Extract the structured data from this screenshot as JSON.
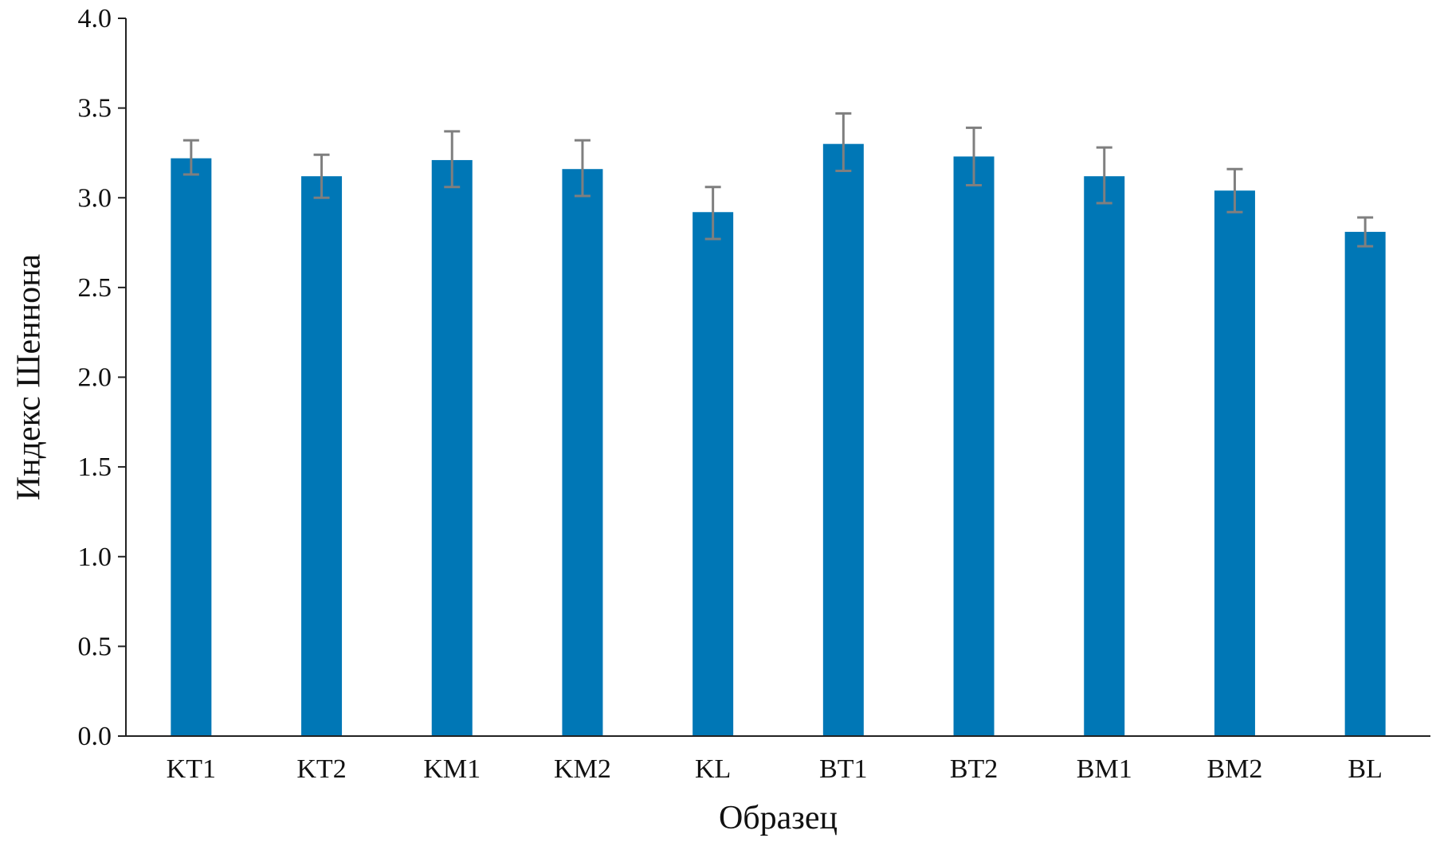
{
  "chart_data": {
    "type": "bar",
    "title": "",
    "xlabel": "Образец",
    "ylabel": "Индекс Шеннона",
    "categories": [
      "KT1",
      "KT2",
      "KM1",
      "KM2",
      "KL",
      "BT1",
      "BT2",
      "BM1",
      "BM2",
      "BL"
    ],
    "series": [
      {
        "values": [
          3.22,
          3.12,
          3.21,
          3.16,
          2.92,
          3.3,
          3.23,
          3.12,
          3.04,
          2.81
        ],
        "error_low": [
          3.13,
          3.0,
          3.06,
          3.01,
          2.77,
          3.15,
          3.07,
          2.97,
          2.92,
          2.73
        ],
        "error_high": [
          3.32,
          3.24,
          3.37,
          3.32,
          3.06,
          3.47,
          3.39,
          3.28,
          3.16,
          2.89
        ]
      }
    ],
    "ylim": [
      0,
      4.0
    ],
    "yticks": [
      "0.0",
      "0.5",
      "1.0",
      "1.5",
      "2.0",
      "2.5",
      "3.0",
      "3.5",
      "4.0"
    ],
    "grid": false,
    "legend": "none",
    "colors": {
      "bar": "#0077B6",
      "error_bar": "#7F7F7F",
      "axis": "#222222"
    }
  }
}
